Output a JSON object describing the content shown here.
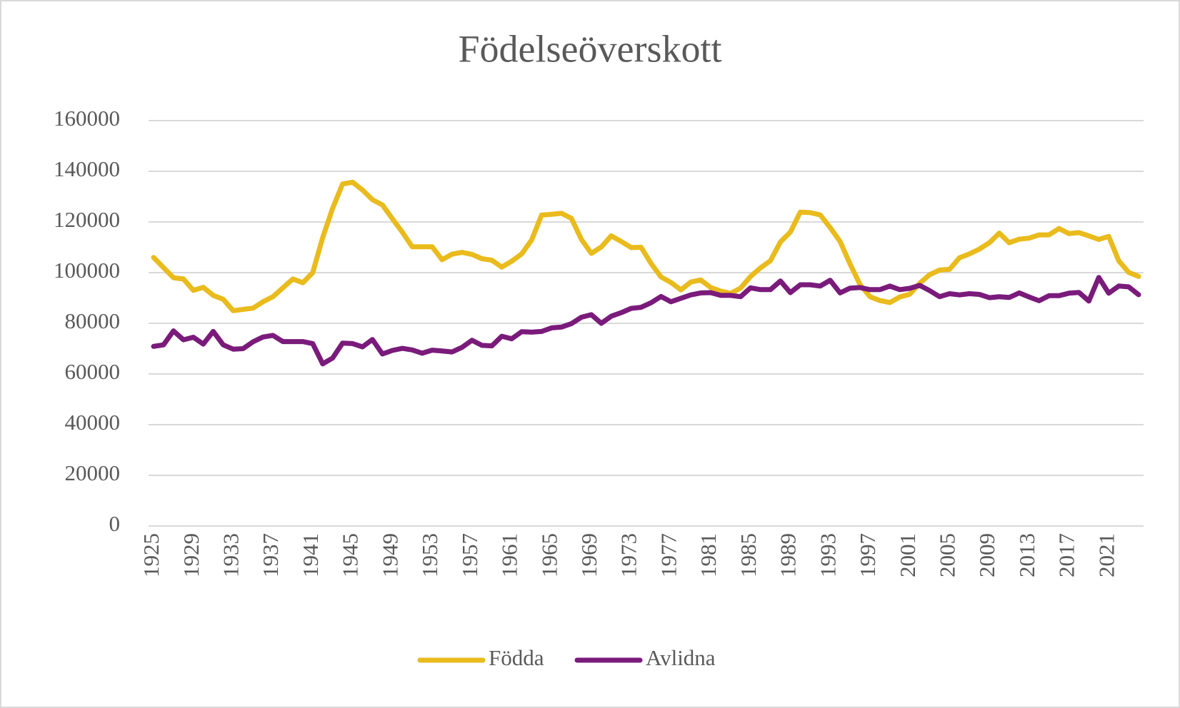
{
  "chart_data": {
    "type": "line",
    "title": "Födelseöverskott",
    "x": [
      1925,
      1926,
      1927,
      1928,
      1929,
      1930,
      1931,
      1932,
      1933,
      1934,
      1935,
      1936,
      1937,
      1938,
      1939,
      1940,
      1941,
      1942,
      1943,
      1944,
      1945,
      1946,
      1947,
      1948,
      1949,
      1950,
      1951,
      1952,
      1953,
      1954,
      1955,
      1956,
      1957,
      1958,
      1959,
      1960,
      1961,
      1962,
      1963,
      1964,
      1965,
      1966,
      1967,
      1968,
      1969,
      1970,
      1971,
      1972,
      1973,
      1974,
      1975,
      1976,
      1977,
      1978,
      1979,
      1980,
      1981,
      1982,
      1983,
      1984,
      1985,
      1986,
      1987,
      1988,
      1989,
      1990,
      1991,
      1992,
      1993,
      1994,
      1995,
      1996,
      1997,
      1998,
      1999,
      2000,
      2001,
      2002,
      2003,
      2004,
      2005,
      2006,
      2007,
      2008,
      2009,
      2010,
      2011,
      2012,
      2013,
      2014,
      2015,
      2016,
      2017,
      2018,
      2019,
      2020,
      2021,
      2022,
      2023,
      2024
    ],
    "xlim": [
      1924.5,
      2024.5
    ],
    "xticks": [
      1925,
      1929,
      1933,
      1937,
      1941,
      1945,
      1949,
      1953,
      1957,
      1961,
      1965,
      1969,
      1973,
      1977,
      1981,
      1985,
      1989,
      1993,
      1997,
      2001,
      2005,
      2009,
      2013,
      2017,
      2021
    ],
    "ylim": [
      0,
      160000
    ],
    "yticks": [
      0,
      20000,
      40000,
      60000,
      80000,
      100000,
      120000,
      140000,
      160000
    ],
    "grid": true,
    "legend": "bottom",
    "series": [
      {
        "name": "Födda",
        "color": "#e9bb1c",
        "values": [
          106000,
          102000,
          98000,
          97500,
          93000,
          94200,
          91000,
          89500,
          85000,
          85500,
          86000,
          88500,
          90500,
          94000,
          97500,
          96000,
          100000,
          113900,
          125400,
          135000,
          135700,
          132600,
          128800,
          126700,
          121300,
          116000,
          110200,
          110200,
          110200,
          105100,
          107300,
          108000,
          107200,
          105500,
          104900,
          102200,
          104500,
          107400,
          112900,
          122700,
          123000,
          123400,
          121400,
          113100,
          107600,
          110100,
          114500,
          112300,
          109900,
          110000,
          103600,
          98300,
          96100,
          93200,
          96300,
          97100,
          94100,
          92700,
          91800,
          93900,
          98500,
          101900,
          104700,
          112100,
          116000,
          123900,
          123700,
          122800,
          117800,
          112300,
          103400,
          95300,
          90500,
          89000,
          88200,
          90400,
          91500,
          95800,
          99200,
          101000,
          101300,
          105900,
          107400,
          109300,
          111800,
          115600,
          111800,
          113200,
          113600,
          114900,
          114900,
          117400,
          115400,
          115800,
          114500,
          113100,
          114300,
          104700,
          100100,
          98500
        ]
      },
      {
        "name": "Avlidna",
        "color": "#7a1b7b",
        "values": [
          70900,
          71500,
          77000,
          73500,
          74500,
          71800,
          76800,
          71500,
          69800,
          70000,
          72700,
          74600,
          75200,
          72800,
          72800,
          72800,
          72000,
          64000,
          66300,
          72200,
          72000,
          70700,
          73600,
          67900,
          69300,
          70100,
          69500,
          68200,
          69400,
          69100,
          68700,
          70500,
          73300,
          71300,
          71100,
          74900,
          73900,
          76700,
          76500,
          76800,
          78200,
          78500,
          79900,
          82400,
          83400,
          80000,
          82800,
          84200,
          85900,
          86300,
          88100,
          90600,
          88500,
          89900,
          91200,
          92000,
          92100,
          91000,
          91000,
          90500,
          94000,
          93300,
          93300,
          96700,
          92100,
          95200,
          95200,
          94700,
          97000,
          92000,
          93900,
          94100,
          93300,
          93300,
          94700,
          93300,
          93800,
          95000,
          92900,
          90500,
          91700,
          91200,
          91700,
          91400,
          90100,
          90500,
          90200,
          92000,
          90400,
          88900,
          90900,
          90900,
          91900,
          92200,
          88800,
          98100,
          91900,
          94700,
          94400,
          91300
        ]
      }
    ]
  }
}
